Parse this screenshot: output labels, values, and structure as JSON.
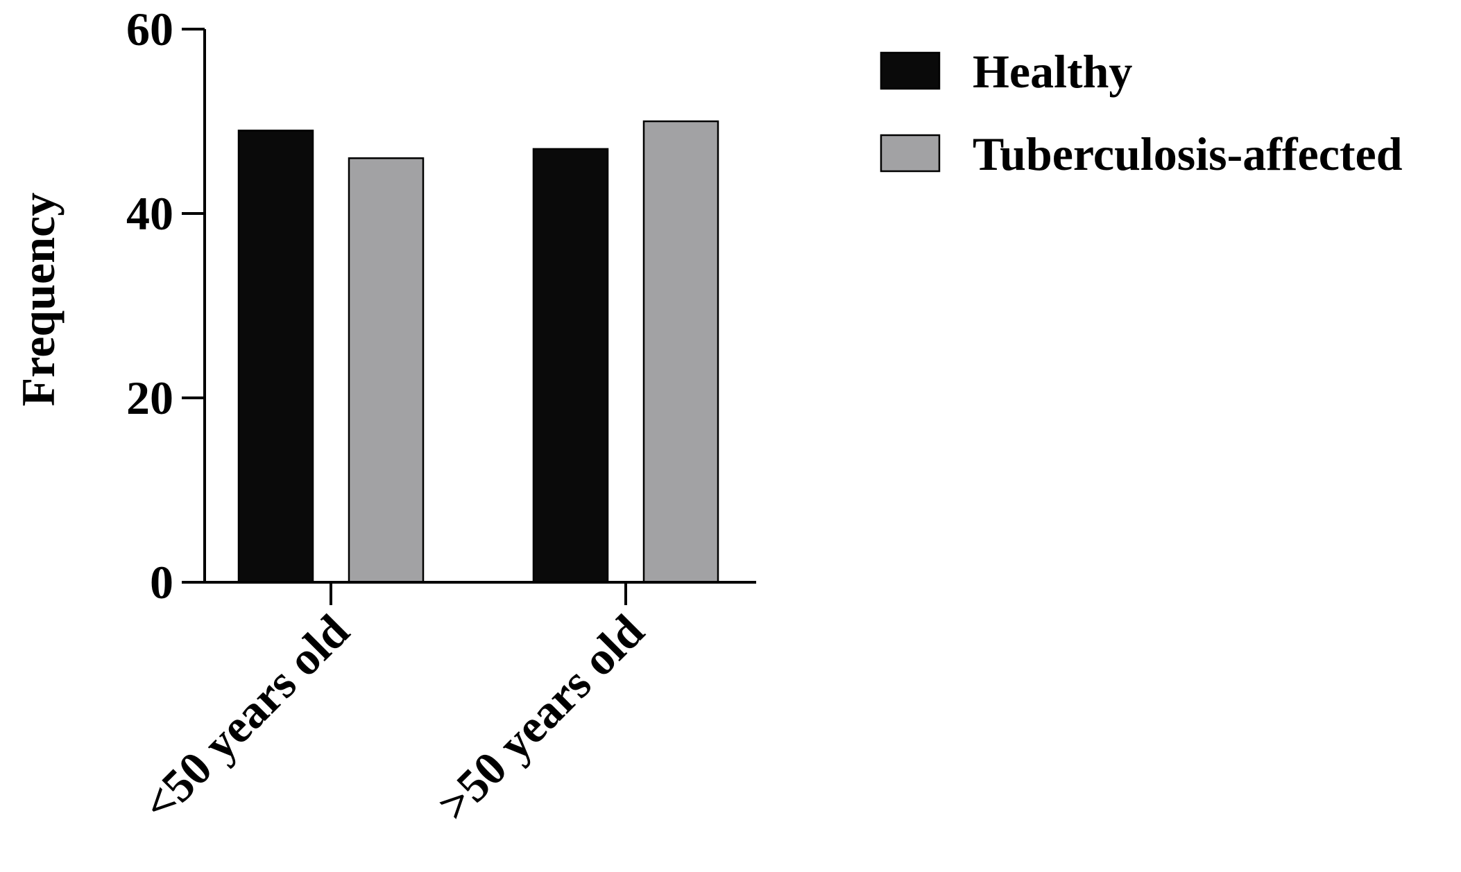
{
  "chart_data": {
    "type": "bar",
    "title": "",
    "xlabel": "",
    "ylabel": "Frequency",
    "ylim": [
      0,
      60
    ],
    "yticks": [
      0,
      20,
      40,
      60
    ],
    "categories": [
      "<50 years old",
      ">50 years old"
    ],
    "series": [
      {
        "name": "Healthy",
        "color": "#0a0a0a",
        "values": [
          49,
          47
        ]
      },
      {
        "name": "Tuberculosis-affected",
        "color": "#a2a2a4",
        "values": [
          46,
          50
        ]
      }
    ],
    "legend_position": "top-right",
    "grid": false
  }
}
